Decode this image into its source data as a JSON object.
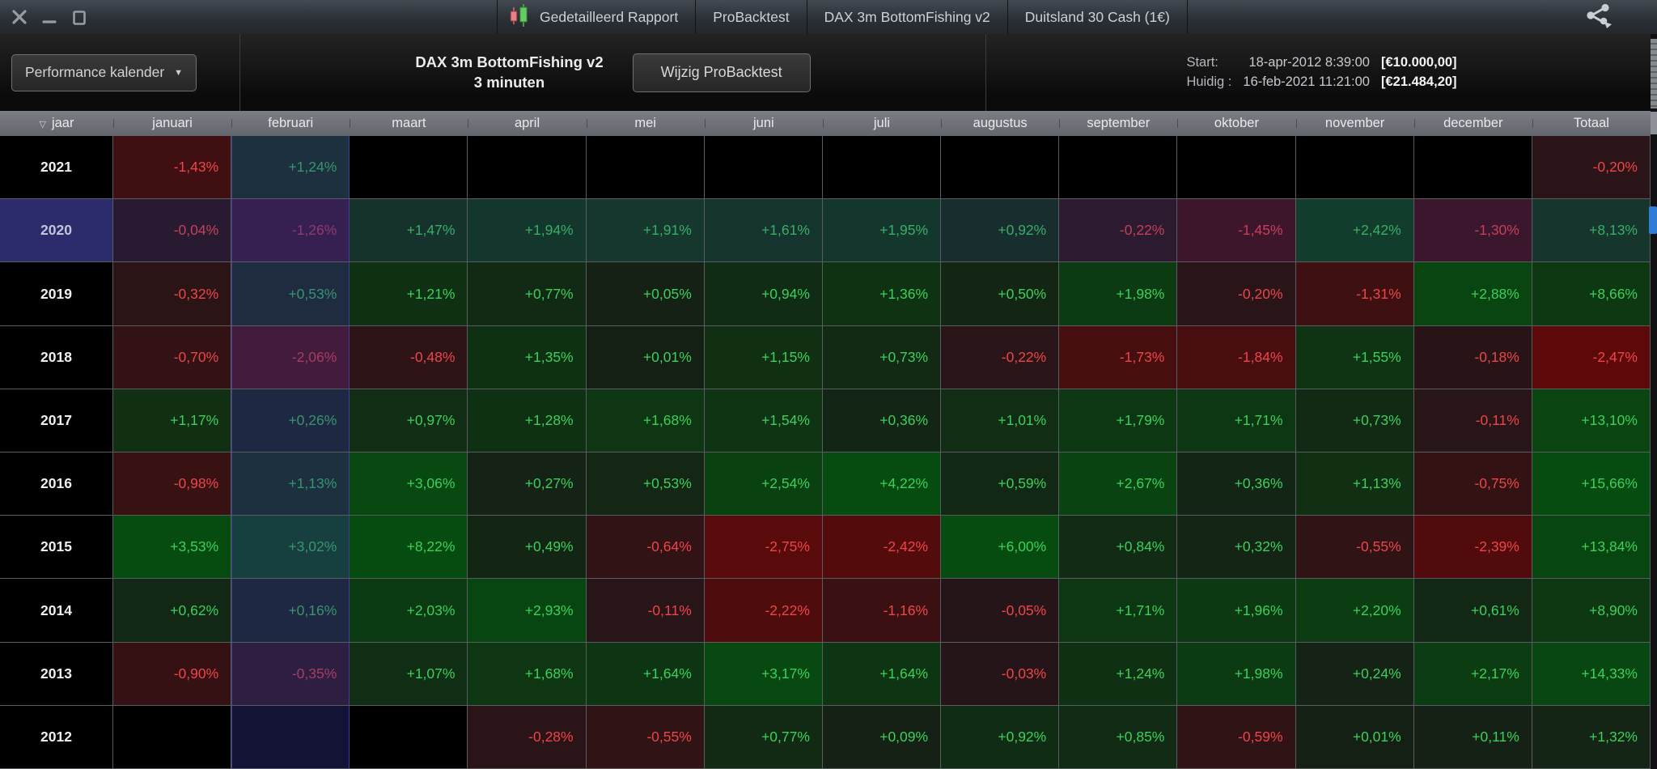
{
  "window": {
    "controls": [
      {
        "name": "close",
        "glyph": "x"
      },
      {
        "name": "minimize",
        "glyph": "minus"
      },
      {
        "name": "maximize",
        "glyph": "square"
      }
    ]
  },
  "titlebar": {
    "tabs": [
      "Gedetailleerd Rapport",
      "ProBacktest",
      "DAX 3m BottomFishing v2",
      "Duitsland 30 Cash (1€)"
    ],
    "icons": {
      "candles": "candlestick-chart-icon",
      "share": "share-icon"
    }
  },
  "toolbar": {
    "view_selector": "Performance kalender",
    "title_line1": "DAX 3m BottomFishing v2",
    "title_line2": "3 minuten",
    "edit_button": "Wijzig ProBacktest",
    "start_label": "Start:",
    "start_date": "18-apr-2012 8:39:00",
    "start_amount": "[€10.000,00]",
    "current_label": "Huidig :",
    "current_date": "16-feb-2021 11:21:00",
    "current_amount": "[€21.484,20]"
  },
  "table": {
    "columns": [
      "jaar",
      "januari",
      "februari",
      "maart",
      "april",
      "mei",
      "juni",
      "juli",
      "augustus",
      "september",
      "oktober",
      "november",
      "december",
      "Totaal"
    ],
    "rows": [
      {
        "year": "2021",
        "months": [
          "-1,43%",
          "+1,24%",
          "",
          "",
          "",
          "",
          "",
          "",
          "",
          "",
          "",
          ""
        ],
        "total": "-0,20%"
      },
      {
        "year": "2020",
        "months": [
          "-0,04%",
          "-1,26%",
          "+1,47%",
          "+1,94%",
          "+1,91%",
          "+1,61%",
          "+1,95%",
          "+0,92%",
          "-0,22%",
          "-1,45%",
          "+2,42%",
          "-1,30%"
        ],
        "total": "+8,13%"
      },
      {
        "year": "2019",
        "months": [
          "-0,32%",
          "+0,53%",
          "+1,21%",
          "+0,77%",
          "+0,05%",
          "+0,94%",
          "+1,36%",
          "+0,50%",
          "+1,98%",
          "-0,20%",
          "-1,31%",
          "+2,88%"
        ],
        "total": "+8,66%"
      },
      {
        "year": "2018",
        "months": [
          "-0,70%",
          "-2,06%",
          "-0,48%",
          "+1,35%",
          "+0,01%",
          "+1,15%",
          "+0,73%",
          "-0,22%",
          "-1,73%",
          "-1,84%",
          "+1,55%",
          "-0,18%"
        ],
        "total": "-2,47%"
      },
      {
        "year": "2017",
        "months": [
          "+1,17%",
          "+0,26%",
          "+0,97%",
          "+1,28%",
          "+1,68%",
          "+1,54%",
          "+0,36%",
          "+1,01%",
          "+1,79%",
          "+1,71%",
          "+0,73%",
          "-0,11%"
        ],
        "total": "+13,10%"
      },
      {
        "year": "2016",
        "months": [
          "-0,98%",
          "+1,13%",
          "+3,06%",
          "+0,27%",
          "+0,53%",
          "+2,54%",
          "+4,22%",
          "+0,59%",
          "+2,67%",
          "+0,36%",
          "+1,13%",
          "-0,75%"
        ],
        "total": "+15,66%"
      },
      {
        "year": "2015",
        "months": [
          "+3,53%",
          "+3,02%",
          "+8,22%",
          "+0,49%",
          "-0,64%",
          "-2,75%",
          "-2,42%",
          "+6,00%",
          "+0,84%",
          "+0,32%",
          "-0,55%",
          "-2,39%"
        ],
        "total": "+13,84%"
      },
      {
        "year": "2014",
        "months": [
          "+0,62%",
          "+0,16%",
          "+2,03%",
          "+2,93%",
          "-0,11%",
          "-2,22%",
          "-1,16%",
          "-0,05%",
          "+1,71%",
          "+1,96%",
          "+2,20%",
          "+0,61%"
        ],
        "total": "+8,90%"
      },
      {
        "year": "2013",
        "months": [
          "-0,90%",
          "-0,35%",
          "+1,07%",
          "+1,68%",
          "+1,64%",
          "+3,17%",
          "+1,64%",
          "-0,03%",
          "+1,24%",
          "+1,98%",
          "+0,24%",
          "+2,17%"
        ],
        "total": "+14,33%"
      },
      {
        "year": "2012",
        "months": [
          "",
          "",
          "",
          "-0,28%",
          "-0,55%",
          "+0,77%",
          "+0,09%",
          "+0,92%",
          "+0,85%",
          "-0,59%",
          "+0,01%",
          "+0,11%"
        ],
        "total": "+1,32%"
      }
    ],
    "highlight": {
      "year": "2020",
      "column": "februari",
      "month_index": 1
    }
  },
  "colors": {
    "positive_text": "#3bd05c",
    "negative_text": "#ee4449",
    "green_weak": "#152015",
    "green_strong": "#064c10",
    "red_weak": "#251518",
    "red_strong": "#5e0909",
    "empty_cell": "#000000",
    "selected_year_bg": "#2b2b63",
    "column_overlay": "rgba(50,50,140,0.38)",
    "row_overlay": "rgba(50,50,140,0.22)",
    "accent_scroll": "#2e7cd6"
  }
}
